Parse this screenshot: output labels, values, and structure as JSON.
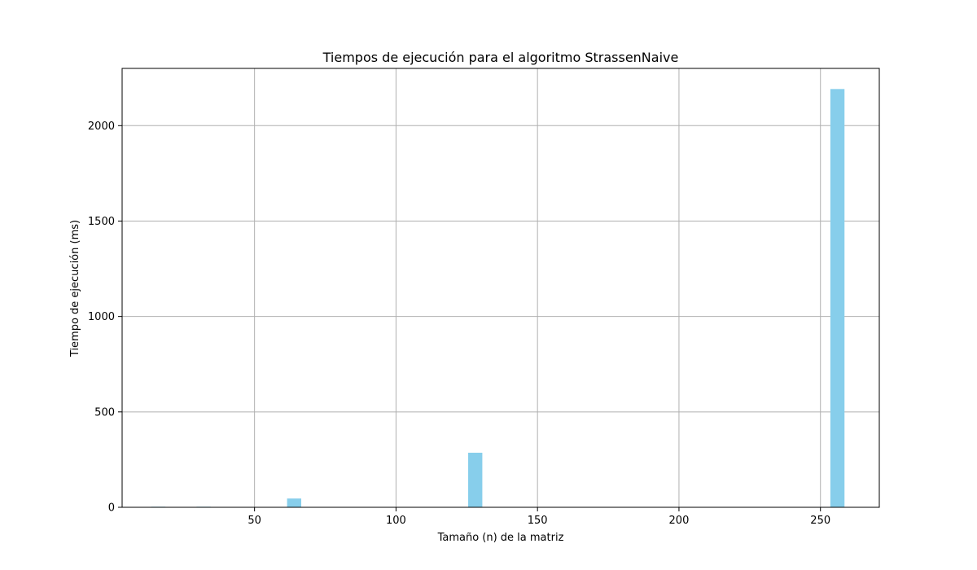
{
  "chart_data": {
    "type": "bar",
    "title": "Tiempos de ejecución para el algoritmo StrassenNaive",
    "xlabel": "Tamaño (n) de la matriz",
    "ylabel": "Tiempo de ejecución (ms)",
    "x": [
      16,
      32,
      64,
      128,
      256
    ],
    "values": [
      3,
      3,
      46,
      286,
      2192
    ],
    "xlim": [
      3.2,
      270.8
    ],
    "ylim": [
      0,
      2300
    ],
    "xticks": [
      50,
      100,
      150,
      200,
      250
    ],
    "yticks": [
      0,
      500,
      1000,
      1500,
      2000
    ],
    "bar_width": 5,
    "bar_color": "#87ceeb",
    "grid": true
  }
}
